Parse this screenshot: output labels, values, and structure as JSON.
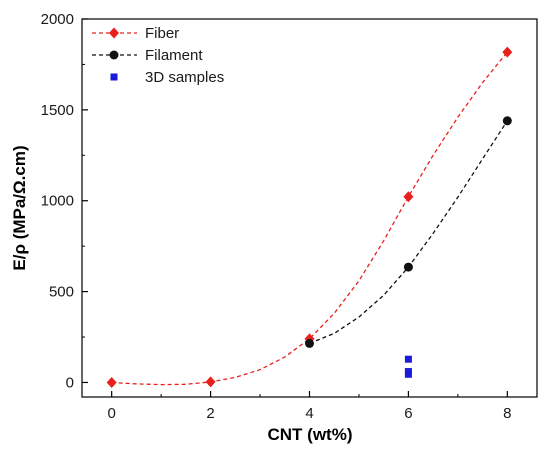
{
  "chart_data": {
    "type": "scatter",
    "xlabel": "CNT (wt%)",
    "ylabel": "E/ρ (MPa/Ω.cm)",
    "xlim": [
      -0.6,
      8.6
    ],
    "ylim": [
      -80,
      2000
    ],
    "xticks": [
      0,
      2,
      4,
      6,
      8
    ],
    "yticks": [
      0,
      500,
      1000,
      1500,
      2000
    ],
    "grid": false,
    "legend": "top-left",
    "series": [
      {
        "name": "Fiber",
        "color": "#e8201c",
        "marker": "diamond",
        "line": "dashed",
        "x": [
          0,
          2,
          4,
          6,
          8
        ],
        "y": [
          0,
          3,
          240,
          1022,
          1818
        ],
        "curve": {
          "x": [
            0,
            0.5,
            1,
            1.5,
            2,
            2.5,
            3,
            3.5,
            4,
            4.5,
            5,
            5.5,
            6,
            6.5,
            7,
            7.5,
            8
          ],
          "y": [
            0,
            -8,
            -12,
            -10,
            3,
            28,
            70,
            140,
            240,
            380,
            560,
            780,
            1022,
            1250,
            1460,
            1650,
            1818
          ]
        }
      },
      {
        "name": "Filament",
        "color": "#111111",
        "marker": "circle",
        "line": "dashed",
        "x": [
          4,
          6,
          8
        ],
        "y": [
          215,
          635,
          1440
        ],
        "curve": {
          "x": [
            4,
            4.5,
            5,
            5.5,
            6,
            6.5,
            7,
            7.5,
            8
          ],
          "y": [
            215,
            270,
            360,
            480,
            635,
            820,
            1020,
            1230,
            1440
          ]
        }
      },
      {
        "name": "3D samples",
        "color": "#1a1adc",
        "marker": "square",
        "line": "none",
        "x": [
          6,
          6,
          6
        ],
        "y": [
          128,
          60,
          45
        ]
      }
    ]
  }
}
